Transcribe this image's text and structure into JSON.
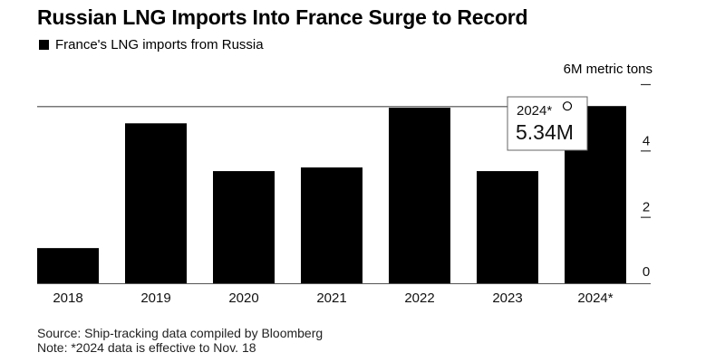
{
  "title": "Russian LNG Imports Into France Surge to Record",
  "legend_label": "France's LNG imports from Russia",
  "unit_label": "6M metric tons",
  "tooltip": {
    "label": "2024*",
    "value": "5.34M"
  },
  "footer": {
    "source": "Source: Ship-tracking data compiled by Bloomberg",
    "note": "Note: *2024 data is effective to Nov. 18"
  },
  "chart_data": {
    "type": "bar",
    "title": "Russian LNG Imports Into France Surge to Record",
    "categories": [
      "2018",
      "2019",
      "2020",
      "2021",
      "2022",
      "2023",
      "2024*"
    ],
    "series": [
      {
        "name": "France's LNG imports from Russia",
        "values": [
          1.06,
          4.82,
          3.38,
          3.49,
          5.29,
          3.38,
          5.34
        ]
      }
    ],
    "xlabel": "",
    "ylabel": "6M metric tons",
    "ylim": [
      0,
      6
    ],
    "yticks": [
      0,
      2,
      4,
      6
    ],
    "ytick_labels": [
      "0",
      "2",
      "4",
      ""
    ],
    "highlight_index": 6,
    "bar_color": "#000000",
    "legend": "top-left",
    "grid": false
  }
}
